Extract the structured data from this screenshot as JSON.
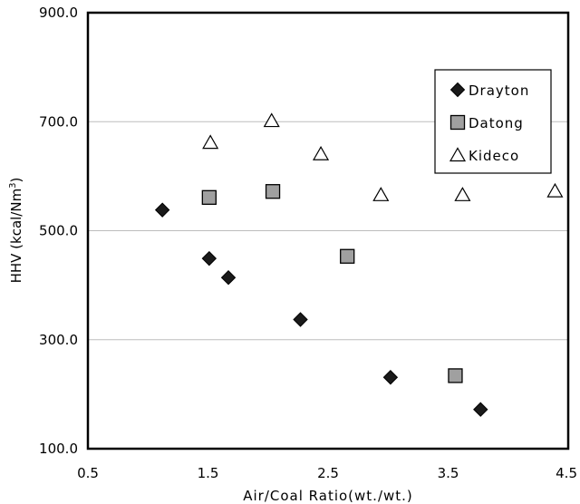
{
  "chart_data": {
    "type": "scatter",
    "title": "",
    "xlabel": "Air/Coal Ratio(wt./wt.)",
    "ylabel": "HHV (kcal/Nm³)",
    "ylabel_parts": {
      "main": "HHV (kcal/Nm",
      "sup": "3",
      "end": ")"
    },
    "xlim": [
      0.5,
      4.5
    ],
    "ylim": [
      100,
      900
    ],
    "xticks": [
      0.5,
      1.5,
      2.5,
      3.5,
      4.5
    ],
    "xtick_labels": [
      "0.5",
      "1.5",
      "2.5",
      "3.5",
      "4.5"
    ],
    "yticks": [
      100,
      300,
      500,
      700,
      900
    ],
    "ytick_labels": [
      "100.0",
      "300.0",
      "500.0",
      "700.0",
      "900.0"
    ],
    "grid": "horizontal",
    "legend_position": "top-right",
    "series": [
      {
        "name": "Drayton",
        "marker": "diamond",
        "color": "#1a1a1a",
        "points": [
          [
            1.12,
            538
          ],
          [
            1.51,
            449
          ],
          [
            1.67,
            414
          ],
          [
            2.27,
            337
          ],
          [
            3.02,
            231
          ],
          [
            3.77,
            172
          ]
        ]
      },
      {
        "name": "Datong",
        "marker": "square",
        "color": "#a0a0a0",
        "points": [
          [
            1.51,
            561
          ],
          [
            2.04,
            572
          ],
          [
            2.66,
            453
          ],
          [
            3.56,
            234
          ]
        ]
      },
      {
        "name": "Kideco",
        "marker": "triangle",
        "color": "#ffffff",
        "points": [
          [
            1.52,
            662
          ],
          [
            2.03,
            702
          ],
          [
            2.44,
            641
          ],
          [
            2.94,
            566
          ],
          [
            3.62,
            566
          ],
          [
            4.39,
            573
          ]
        ]
      }
    ]
  }
}
